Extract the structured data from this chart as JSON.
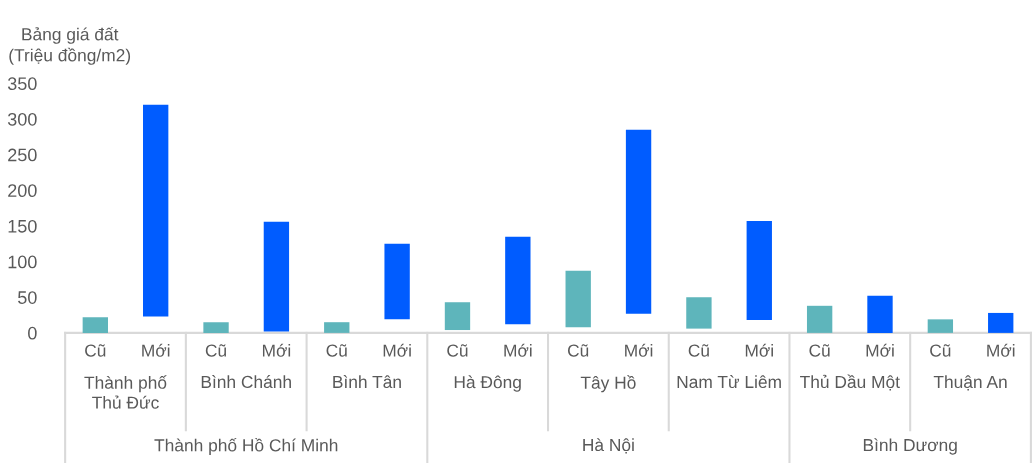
{
  "chart_data": {
    "type": "bar",
    "ylabel": "Bảng giá đất\n(Triệu đồng/m2)",
    "categories": [
      "Cũ",
      "Mới",
      "Cũ",
      "Mới",
      "Cũ",
      "Mới",
      "Cũ",
      "Mới",
      "Cũ",
      "Mới",
      "Cũ",
      "Mới",
      "Cũ",
      "Mới",
      "Cũ",
      "Mới"
    ],
    "series": [
      {
        "values": [
          22,
          297,
          15,
          154,
          15,
          106,
          39,
          123,
          79,
          258,
          44,
          139,
          38,
          52,
          19,
          28
        ],
        "base": [
          0,
          23,
          0,
          2,
          0,
          19,
          4,
          12,
          8,
          27,
          6,
          18,
          0,
          0,
          0,
          0
        ],
        "colors": [
          "#5eb5bb",
          "#005cff",
          "#5eb5bb",
          "#005cff",
          "#5eb5bb",
          "#005cff",
          "#5eb5bb",
          "#005cff",
          "#5eb5bb",
          "#005cff",
          "#5eb5bb",
          "#005cff",
          "#5eb5bb",
          "#005cff",
          "#5eb5bb",
          "#005cff"
        ]
      }
    ],
    "annotations": [
      "Thành phố\nThủ Đức",
      "Bình Chánh",
      "Bình Tân",
      "Hà Đông",
      "Tây Hồ",
      "Nam Từ Liêm",
      "Thủ Dầu Một",
      "Thuận An",
      "Thành phố Hồ Chí Minh",
      "Hà Nội",
      "Bình Dương"
    ],
    "ylim": [
      0,
      350
    ],
    "yticks": [
      0,
      50,
      100,
      150,
      200,
      250,
      300,
      350
    ],
    "grid": false,
    "legend": false
  }
}
